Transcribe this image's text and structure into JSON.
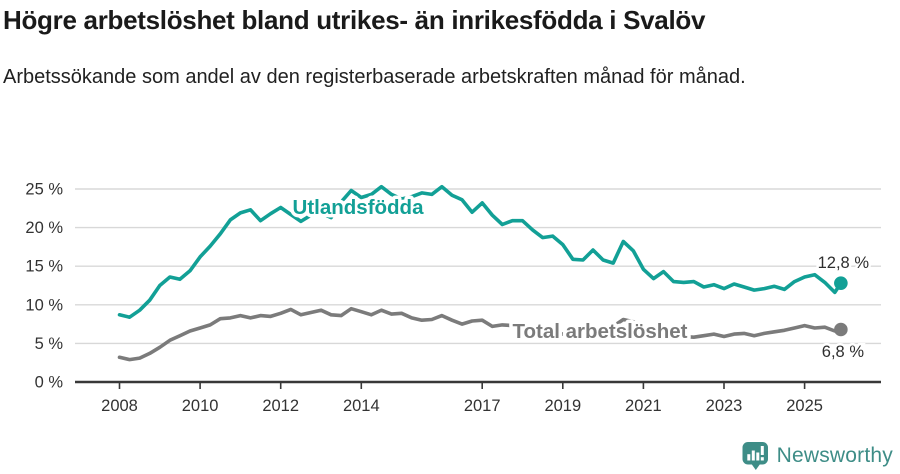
{
  "header": {
    "title": "Högre arbetslöshet bland utrikes- än inrikesfödda i Svalöv",
    "subtitle": "Arbetssökande som andel av den registerbaserade arbetskraften månad för månad."
  },
  "chart_data": {
    "type": "line",
    "unit": "%",
    "ylim": [
      0,
      25
    ],
    "grid": "horizontal",
    "legend": "inline-labels",
    "y_tick_values": [
      0,
      5,
      10,
      15,
      20,
      25
    ],
    "y_tick_labels": [
      "0 %",
      "5 %",
      "10 %",
      "15 %",
      "20 %",
      "25 %"
    ],
    "x_tick_values": [
      2008,
      2010,
      2012,
      2014,
      2017,
      2019,
      2021,
      2023,
      2025
    ],
    "x_tick_labels": [
      "2008",
      "2010",
      "2012",
      "2014",
      "2017",
      "2019",
      "2021",
      "2023",
      "2025"
    ],
    "x": [
      2008,
      2008.25,
      2008.5,
      2008.75,
      2009,
      2009.25,
      2009.5,
      2009.75,
      2010,
      2010.25,
      2010.5,
      2010.75,
      2011,
      2011.25,
      2011.5,
      2011.75,
      2012,
      2012.25,
      2012.5,
      2012.75,
      2013,
      2013.25,
      2013.5,
      2013.75,
      2014,
      2014.25,
      2014.5,
      2014.75,
      2015,
      2015.25,
      2015.5,
      2015.75,
      2016,
      2016.25,
      2016.5,
      2016.75,
      2017,
      2017.25,
      2017.5,
      2017.75,
      2018,
      2018.25,
      2018.5,
      2018.75,
      2019,
      2019.25,
      2019.5,
      2019.75,
      2020,
      2020.25,
      2020.5,
      2020.75,
      2021,
      2021.25,
      2021.5,
      2021.75,
      2022,
      2022.25,
      2022.5,
      2022.75,
      2023,
      2023.25,
      2023.5,
      2023.75,
      2024,
      2024.25,
      2024.5,
      2024.75,
      2025,
      2025.25,
      2025.5,
      2025.75,
      2025.9
    ],
    "series": [
      {
        "name": "Utlandsfödda",
        "color": "#12a096",
        "end_label": "12,8 %",
        "end_value": 12.8,
        "values": [
          8.7,
          8.4,
          9.3,
          10.6,
          12.5,
          13.6,
          13.3,
          14.4,
          16.2,
          17.6,
          19.2,
          21.0,
          21.9,
          22.3,
          20.9,
          21.8,
          22.6,
          21.7,
          20.8,
          21.6,
          21.9,
          21.3,
          23.3,
          24.8,
          23.9,
          24.3,
          25.3,
          24.3,
          23.7,
          24.0,
          24.5,
          24.3,
          25.3,
          24.2,
          23.6,
          22.0,
          23.2,
          21.6,
          20.4,
          20.9,
          20.9,
          19.7,
          18.7,
          18.9,
          17.8,
          15.9,
          15.8,
          17.1,
          15.8,
          15.4,
          18.2,
          17.0,
          14.6,
          13.4,
          14.3,
          13.0,
          12.9,
          13.0,
          12.3,
          12.6,
          12.1,
          12.7,
          12.3,
          11.9,
          12.1,
          12.4,
          12.0,
          13.0,
          13.6,
          13.9,
          12.9,
          11.6,
          12.8
        ]
      },
      {
        "name": "Total arbetslöshet",
        "color": "#7b7b7b",
        "end_label": "6,8 %",
        "end_value": 6.8,
        "values": [
          3.2,
          2.9,
          3.1,
          3.7,
          4.5,
          5.4,
          6.0,
          6.6,
          7.0,
          7.4,
          8.2,
          8.3,
          8.6,
          8.3,
          8.6,
          8.5,
          8.9,
          9.4,
          8.7,
          9.0,
          9.3,
          8.7,
          8.6,
          9.5,
          9.1,
          8.7,
          9.3,
          8.8,
          8.9,
          8.3,
          8.0,
          8.1,
          8.6,
          8.0,
          7.5,
          7.9,
          8.0,
          7.2,
          7.4,
          7.3,
          7.0,
          6.7,
          6.5,
          6.3,
          6.2,
          6.0,
          6.1,
          6.2,
          6.4,
          7.2,
          8.1,
          7.8,
          7.2,
          6.8,
          6.4,
          6.1,
          5.9,
          5.8,
          6.0,
          6.2,
          5.9,
          6.2,
          6.3,
          6.0,
          6.3,
          6.5,
          6.7,
          7.0,
          7.3,
          7.0,
          7.1,
          6.6,
          6.8
        ]
      }
    ]
  },
  "footer": {
    "brand": "Newsworthy"
  },
  "colors": {
    "accent_teal": "#12a096",
    "series_gray": "#7b7b7b",
    "axis": "#383838",
    "gridline": "#d8d8d8",
    "tick_text": "#333333",
    "value_label": "#2e2e2e",
    "brand_teal": "#3e8d87"
  }
}
